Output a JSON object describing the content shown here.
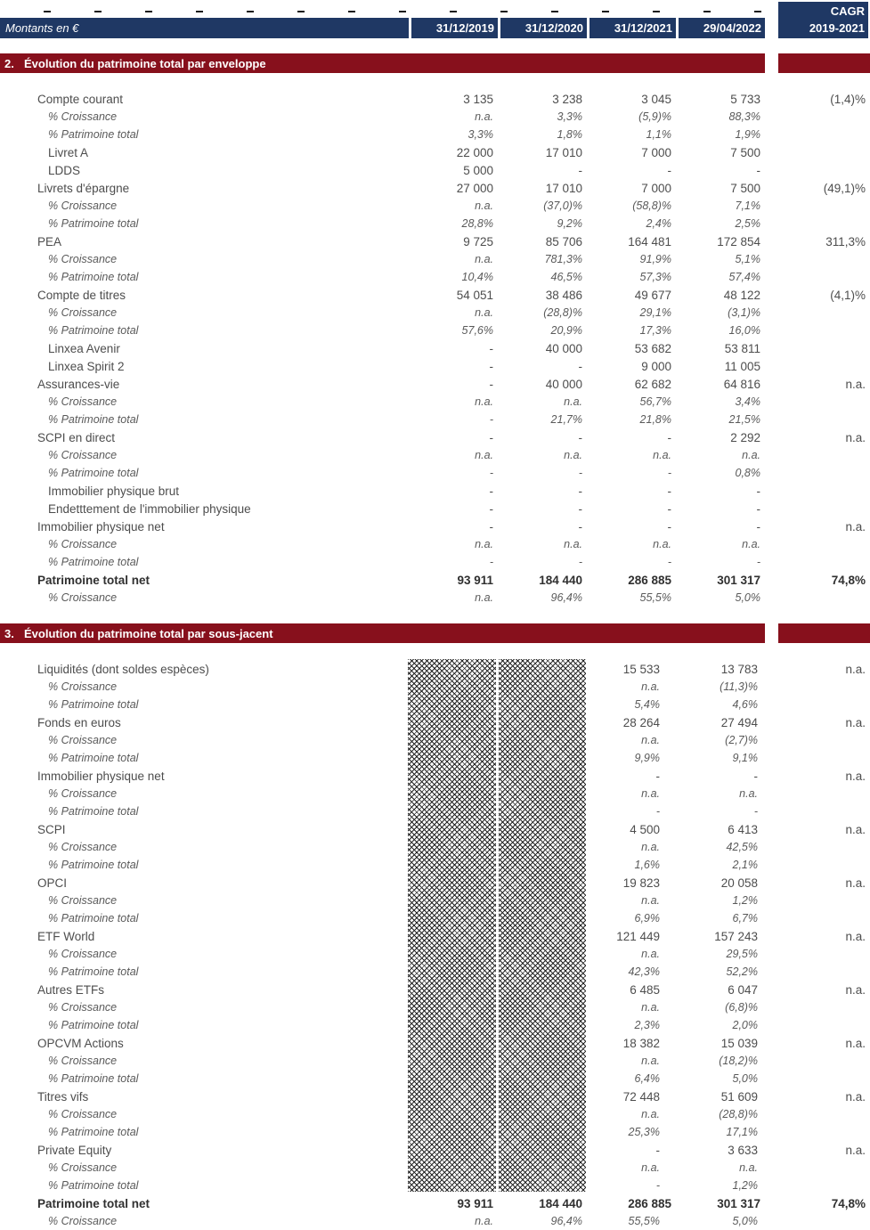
{
  "header": {
    "unit_label": "Montants en €",
    "dates": [
      "31/12/2019",
      "31/12/2020",
      "31/12/2021",
      "29/04/2022"
    ],
    "cagr_line1": "CAGR",
    "cagr_line2": "2019-2021"
  },
  "colors": {
    "navy": "#1F3864",
    "maroon": "#87101C",
    "text_main": "#4d4d4d",
    "text_pct": "#5a5a5a",
    "text_bold": "#303030"
  },
  "sections": [
    {
      "number": "2.",
      "title": "Évolution du patrimoine total par enveloppe",
      "rows": [
        {
          "label": "Compte courant",
          "style": "main",
          "indent": 0,
          "values": [
            "3 135",
            "3 238",
            "3 045",
            "5 733"
          ],
          "cagr": "(1,4)%"
        },
        {
          "label": "% Croissance",
          "style": "pct",
          "indent": 1,
          "values": [
            "n.a.",
            "3,3%",
            "(5,9)%",
            "88,3%"
          ],
          "cagr": ""
        },
        {
          "label": "% Patrimoine total",
          "style": "pct",
          "indent": 1,
          "values": [
            "3,3%",
            "1,8%",
            "1,1%",
            "1,9%"
          ],
          "cagr": ""
        },
        {
          "label": "Livret A",
          "style": "main",
          "indent": 1,
          "values": [
            "22 000",
            "17 010",
            "7 000",
            "7 500"
          ],
          "cagr": ""
        },
        {
          "label": "LDDS",
          "style": "main",
          "indent": 1,
          "values": [
            "5 000",
            "-",
            "-",
            "-"
          ],
          "cagr": ""
        },
        {
          "label": "Livrets d'épargne",
          "style": "main",
          "indent": 0,
          "values": [
            "27 000",
            "17 010",
            "7 000",
            "7 500"
          ],
          "cagr": "(49,1)%"
        },
        {
          "label": "% Croissance",
          "style": "pct",
          "indent": 1,
          "values": [
            "n.a.",
            "(37,0)%",
            "(58,8)%",
            "7,1%"
          ],
          "cagr": ""
        },
        {
          "label": "% Patrimoine total",
          "style": "pct",
          "indent": 1,
          "values": [
            "28,8%",
            "9,2%",
            "2,4%",
            "2,5%"
          ],
          "cagr": ""
        },
        {
          "label": "PEA",
          "style": "main",
          "indent": 0,
          "values": [
            "9 725",
            "85 706",
            "164 481",
            "172 854"
          ],
          "cagr": "311,3%"
        },
        {
          "label": "% Croissance",
          "style": "pct",
          "indent": 1,
          "values": [
            "n.a.",
            "781,3%",
            "91,9%",
            "5,1%"
          ],
          "cagr": ""
        },
        {
          "label": "% Patrimoine total",
          "style": "pct",
          "indent": 1,
          "values": [
            "10,4%",
            "46,5%",
            "57,3%",
            "57,4%"
          ],
          "cagr": ""
        },
        {
          "label": "Compte de titres",
          "style": "main",
          "indent": 0,
          "values": [
            "54 051",
            "38 486",
            "49 677",
            "48 122"
          ],
          "cagr": "(4,1)%"
        },
        {
          "label": "% Croissance",
          "style": "pct",
          "indent": 1,
          "values": [
            "n.a.",
            "(28,8)%",
            "29,1%",
            "(3,1)%"
          ],
          "cagr": ""
        },
        {
          "label": "% Patrimoine total",
          "style": "pct",
          "indent": 1,
          "values": [
            "57,6%",
            "20,9%",
            "17,3%",
            "16,0%"
          ],
          "cagr": ""
        },
        {
          "label": "Linxea Avenir",
          "style": "main",
          "indent": 1,
          "values": [
            "-",
            "40 000",
            "53 682",
            "53 811"
          ],
          "cagr": ""
        },
        {
          "label": "Linxea Spirit 2",
          "style": "main",
          "indent": 1,
          "values": [
            "-",
            "-",
            "9 000",
            "11 005"
          ],
          "cagr": ""
        },
        {
          "label": "Assurances-vie",
          "style": "main",
          "indent": 0,
          "values": [
            "-",
            "40 000",
            "62 682",
            "64 816"
          ],
          "cagr": "n.a."
        },
        {
          "label": "% Croissance",
          "style": "pct",
          "indent": 1,
          "values": [
            "n.a.",
            "n.a.",
            "56,7%",
            "3,4%"
          ],
          "cagr": ""
        },
        {
          "label": "% Patrimoine total",
          "style": "pct",
          "indent": 1,
          "values": [
            "-",
            "21,7%",
            "21,8%",
            "21,5%"
          ],
          "cagr": ""
        },
        {
          "label": "SCPI en direct",
          "style": "main",
          "indent": 0,
          "values": [
            "-",
            "-",
            "-",
            "2 292"
          ],
          "cagr": "n.a."
        },
        {
          "label": "% Croissance",
          "style": "pct",
          "indent": 1,
          "values": [
            "n.a.",
            "n.a.",
            "n.a.",
            "n.a."
          ],
          "cagr": ""
        },
        {
          "label": "% Patrimoine total",
          "style": "pct",
          "indent": 1,
          "values": [
            "-",
            "-",
            "-",
            "0,8%"
          ],
          "cagr": ""
        },
        {
          "label": "Immobilier physique brut",
          "style": "main",
          "indent": 1,
          "values": [
            "-",
            "-",
            "-",
            "-"
          ],
          "cagr": ""
        },
        {
          "label": "Endetttement de l'immobilier physique",
          "style": "main",
          "indent": 1,
          "values": [
            "-",
            "-",
            "-",
            "-"
          ],
          "cagr": ""
        },
        {
          "label": "Immobilier physique net",
          "style": "main",
          "indent": 0,
          "values": [
            "-",
            "-",
            "-",
            "-"
          ],
          "cagr": "n.a."
        },
        {
          "label": "% Croissance",
          "style": "pct",
          "indent": 1,
          "values": [
            "n.a.",
            "n.a.",
            "n.a.",
            "n.a."
          ],
          "cagr": ""
        },
        {
          "label": "% Patrimoine total",
          "style": "pct",
          "indent": 1,
          "values": [
            "-",
            "-",
            "-",
            "-"
          ],
          "cagr": ""
        },
        {
          "label": "Patrimoine total net",
          "style": "bold",
          "indent": 0,
          "values": [
            "93 911",
            "184 440",
            "286 885",
            "301 317"
          ],
          "cagr": "74,8%"
        },
        {
          "label": "% Croissance",
          "style": "pct",
          "indent": 1,
          "values": [
            "n.a.",
            "96,4%",
            "55,5%",
            "5,0%"
          ],
          "cagr": ""
        }
      ]
    },
    {
      "number": "3.",
      "title": "Évolution du patrimoine total par sous-jacent",
      "masked_columns": [
        "31/12/2019",
        "31/12/2020"
      ],
      "rows": [
        {
          "label": "Liquidités (dont soldes espèces)",
          "style": "main",
          "indent": 0,
          "values": [
            "",
            "",
            "15 533",
            "13 783"
          ],
          "cagr": "n.a."
        },
        {
          "label": "% Croissance",
          "style": "pct",
          "indent": 1,
          "values": [
            "",
            "",
            "n.a.",
            "(11,3)%"
          ],
          "cagr": ""
        },
        {
          "label": "% Patrimoine total",
          "style": "pct",
          "indent": 1,
          "values": [
            "",
            "",
            "5,4%",
            "4,6%"
          ],
          "cagr": ""
        },
        {
          "label": "Fonds en euros",
          "style": "main",
          "indent": 0,
          "values": [
            "",
            "",
            "28 264",
            "27 494"
          ],
          "cagr": "n.a."
        },
        {
          "label": "% Croissance",
          "style": "pct",
          "indent": 1,
          "values": [
            "",
            "",
            "n.a.",
            "(2,7)%"
          ],
          "cagr": ""
        },
        {
          "label": "% Patrimoine total",
          "style": "pct",
          "indent": 1,
          "values": [
            "",
            "",
            "9,9%",
            "9,1%"
          ],
          "cagr": ""
        },
        {
          "label": "Immobilier physique net",
          "style": "main",
          "indent": 0,
          "values": [
            "",
            "",
            "-",
            "-"
          ],
          "cagr": "n.a."
        },
        {
          "label": "% Croissance",
          "style": "pct",
          "indent": 1,
          "values": [
            "",
            "",
            "n.a.",
            "n.a."
          ],
          "cagr": ""
        },
        {
          "label": "% Patrimoine total",
          "style": "pct",
          "indent": 1,
          "values": [
            "",
            "",
            "-",
            "-"
          ],
          "cagr": ""
        },
        {
          "label": "SCPI",
          "style": "main",
          "indent": 0,
          "values": [
            "",
            "",
            "4 500",
            "6 413"
          ],
          "cagr": "n.a."
        },
        {
          "label": "% Croissance",
          "style": "pct",
          "indent": 1,
          "values": [
            "",
            "",
            "n.a.",
            "42,5%"
          ],
          "cagr": ""
        },
        {
          "label": "% Patrimoine total",
          "style": "pct",
          "indent": 1,
          "values": [
            "",
            "",
            "1,6%",
            "2,1%"
          ],
          "cagr": ""
        },
        {
          "label": "OPCI",
          "style": "main",
          "indent": 0,
          "values": [
            "",
            "",
            "19 823",
            "20 058"
          ],
          "cagr": "n.a."
        },
        {
          "label": "% Croissance",
          "style": "pct",
          "indent": 1,
          "values": [
            "",
            "",
            "n.a.",
            "1,2%"
          ],
          "cagr": ""
        },
        {
          "label": "% Patrimoine total",
          "style": "pct",
          "indent": 1,
          "values": [
            "",
            "",
            "6,9%",
            "6,7%"
          ],
          "cagr": ""
        },
        {
          "label": "ETF World",
          "style": "main",
          "indent": 0,
          "values": [
            "",
            "",
            "121 449",
            "157 243"
          ],
          "cagr": "n.a."
        },
        {
          "label": "% Croissance",
          "style": "pct",
          "indent": 1,
          "values": [
            "",
            "",
            "n.a.",
            "29,5%"
          ],
          "cagr": ""
        },
        {
          "label": "% Patrimoine total",
          "style": "pct",
          "indent": 1,
          "values": [
            "",
            "",
            "42,3%",
            "52,2%"
          ],
          "cagr": ""
        },
        {
          "label": "Autres ETFs",
          "style": "main",
          "indent": 0,
          "values": [
            "",
            "",
            "6 485",
            "6 047"
          ],
          "cagr": "n.a."
        },
        {
          "label": "% Croissance",
          "style": "pct",
          "indent": 1,
          "values": [
            "",
            "",
            "n.a.",
            "(6,8)%"
          ],
          "cagr": ""
        },
        {
          "label": "% Patrimoine total",
          "style": "pct",
          "indent": 1,
          "values": [
            "",
            "",
            "2,3%",
            "2,0%"
          ],
          "cagr": ""
        },
        {
          "label": "OPCVM Actions",
          "style": "main",
          "indent": 0,
          "values": [
            "",
            "",
            "18 382",
            "15 039"
          ],
          "cagr": "n.a."
        },
        {
          "label": "% Croissance",
          "style": "pct",
          "indent": 1,
          "values": [
            "",
            "",
            "n.a.",
            "(18,2)%"
          ],
          "cagr": ""
        },
        {
          "label": "% Patrimoine total",
          "style": "pct",
          "indent": 1,
          "values": [
            "",
            "",
            "6,4%",
            "5,0%"
          ],
          "cagr": ""
        },
        {
          "label": "Titres vifs",
          "style": "main",
          "indent": 0,
          "values": [
            "",
            "",
            "72 448",
            "51 609"
          ],
          "cagr": "n.a."
        },
        {
          "label": "% Croissance",
          "style": "pct",
          "indent": 1,
          "values": [
            "",
            "",
            "n.a.",
            "(28,8)%"
          ],
          "cagr": ""
        },
        {
          "label": "% Patrimoine total",
          "style": "pct",
          "indent": 1,
          "values": [
            "",
            "",
            "25,3%",
            "17,1%"
          ],
          "cagr": ""
        },
        {
          "label": "Private Equity",
          "style": "main",
          "indent": 0,
          "values": [
            "",
            "",
            "-",
            "3 633"
          ],
          "cagr": "n.a."
        },
        {
          "label": "% Croissance",
          "style": "pct",
          "indent": 1,
          "values": [
            "",
            "",
            "n.a.",
            "n.a."
          ],
          "cagr": ""
        },
        {
          "label": "% Patrimoine total",
          "style": "pct",
          "indent": 1,
          "values": [
            "",
            "",
            "-",
            "1,2%"
          ],
          "cagr": ""
        },
        {
          "label": "Patrimoine total net",
          "style": "bold",
          "indent": 0,
          "values": [
            "93 911",
            "184 440",
            "286 885",
            "301 317"
          ],
          "cagr": "74,8%"
        },
        {
          "label": "% Croissance",
          "style": "pct",
          "indent": 1,
          "values": [
            "n.a.",
            "96,4%",
            "55,5%",
            "5,0%"
          ],
          "cagr": ""
        }
      ]
    }
  ]
}
